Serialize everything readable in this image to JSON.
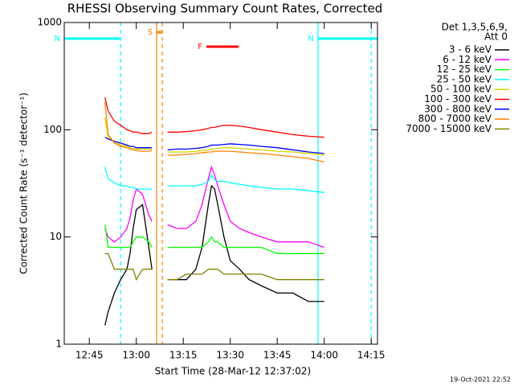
{
  "chart_data": {
    "type": "line",
    "title": "RHESSI Observing Summary Count Rates, Corrected",
    "xlabel": "Start Time (28-Mar-12 12:37:02)",
    "ylabel": "Corrected Count Rate (s⁻¹ detector⁻¹)",
    "legend_title": [
      "Det 1,3,5,6,9,",
      "Att 0"
    ],
    "timestamp": "19-Oct-2021 22:52",
    "ylog": true,
    "xlim": [
      757,
      857
    ],
    "ylim": [
      1,
      1000
    ],
    "xticks": [
      {
        "value": 765,
        "label": "12:45"
      },
      {
        "value": 780,
        "label": "13:00"
      },
      {
        "value": 795,
        "label": "13:15"
      },
      {
        "value": 810,
        "label": "13:30"
      },
      {
        "value": 825,
        "label": "13:45"
      },
      {
        "value": 840,
        "label": "14:00"
      },
      {
        "value": 855,
        "label": "14:15"
      }
    ],
    "yticks": [
      1,
      10,
      100,
      1000
    ],
    "x": [
      770,
      771,
      773,
      775,
      777,
      778,
      779,
      780,
      782,
      784,
      785,
      787,
      790,
      793,
      796,
      799,
      801,
      803,
      804,
      805,
      806,
      808,
      810,
      813,
      816,
      820,
      825,
      830,
      835,
      840
    ],
    "series": [
      {
        "name": "3 - 6 keV",
        "color": "#000000",
        "values": [
          1.5,
          2,
          3,
          4,
          5,
          7,
          12,
          18,
          20,
          8,
          5,
          null,
          4,
          4,
          4,
          5,
          8,
          20,
          30,
          28,
          20,
          10,
          6,
          5,
          4,
          3.5,
          3,
          3,
          2.5,
          2.5
        ]
      },
      {
        "name": "6 - 12 keV",
        "color": "#ff00ff",
        "values": [
          12,
          10,
          9,
          10,
          12,
          15,
          22,
          28,
          25,
          16,
          14,
          null,
          13,
          12,
          12,
          14,
          20,
          35,
          45,
          38,
          30,
          20,
          14,
          12,
          11,
          10,
          9,
          9,
          9,
          8
        ]
      },
      {
        "name": "12 - 25 keV",
        "color": "#00ff00",
        "values": [
          13,
          8,
          8,
          8,
          8,
          8,
          9,
          10,
          10,
          9,
          8,
          null,
          8,
          8,
          8,
          8,
          8,
          9,
          10,
          9,
          9,
          8,
          8,
          8,
          8,
          8,
          7,
          7,
          7,
          7
        ]
      },
      {
        "name": "25 - 50 keV",
        "color": "#00ffff",
        "values": [
          45,
          35,
          32,
          30,
          30,
          29,
          29,
          28,
          28,
          28,
          28,
          null,
          30,
          30,
          30,
          30,
          31,
          33,
          38,
          34,
          33,
          33,
          32,
          31,
          30,
          29,
          28,
          28,
          27,
          26
        ]
      },
      {
        "name": "50 - 100 keV",
        "color": "#d4d400",
        "values": [
          130,
          85,
          78,
          72,
          70,
          68,
          67,
          66,
          66,
          66,
          66,
          null,
          62,
          62,
          62,
          63,
          64,
          65,
          66,
          66,
          67,
          68,
          68,
          67,
          66,
          65,
          63,
          62,
          60,
          58
        ]
      },
      {
        "name": "100 - 300 keV",
        "color": "#ff0000",
        "values": [
          200,
          150,
          120,
          110,
          100,
          98,
          95,
          95,
          92,
          92,
          95,
          null,
          95,
          95,
          96,
          98,
          100,
          103,
          105,
          105,
          107,
          110,
          110,
          108,
          105,
          100,
          95,
          90,
          87,
          85
        ]
      },
      {
        "name": "300 - 800 keV",
        "color": "#0000ff",
        "values": [
          85,
          82,
          78,
          75,
          72,
          70,
          70,
          68,
          68,
          68,
          68,
          null,
          65,
          66,
          66,
          67,
          68,
          70,
          72,
          72,
          72,
          73,
          74,
          73,
          72,
          70,
          68,
          65,
          62,
          60
        ]
      },
      {
        "name": "800 - 7000 keV",
        "color": "#ff8000",
        "values": [
          180,
          90,
          75,
          70,
          68,
          66,
          65,
          64,
          63,
          63,
          64,
          null,
          58,
          58,
          59,
          60,
          61,
          62,
          62,
          63,
          63,
          63,
          63,
          62,
          61,
          60,
          58,
          56,
          54,
          50
        ]
      },
      {
        "name": "7000 - 15000 keV",
        "color": "#808000",
        "values": [
          7,
          7,
          5,
          5,
          5,
          5,
          5,
          4,
          5,
          5,
          5,
          null,
          4,
          4,
          4.5,
          4.5,
          4.5,
          5,
          5,
          5,
          5,
          4.5,
          4.5,
          4.5,
          4.5,
          4.5,
          4,
          4,
          4,
          4
        ]
      }
    ],
    "flags": [
      {
        "label": "N",
        "color": "#00ffff",
        "x": [
          757,
          775
        ]
      },
      {
        "label": "N",
        "color": "#00ffff",
        "x": [
          838,
          857
        ]
      },
      {
        "label": "S",
        "color": "#ff8000",
        "x": [
          786.5,
          788.3
        ]
      },
      {
        "label": "F",
        "color": "#ff0000",
        "x": [
          802.4,
          812.7
        ]
      }
    ],
    "markers": [
      {
        "x": 775,
        "color": "#00ffff",
        "dashed": true
      },
      {
        "x": 838,
        "color": "#00ffff",
        "dashed": false
      },
      {
        "x": 855,
        "color": "#00ffff",
        "dashed": true
      },
      {
        "x": 786.5,
        "color": "#ff8000",
        "dashed": false
      },
      {
        "x": 788.3,
        "color": "#ff8000",
        "dashed": true
      }
    ]
  }
}
